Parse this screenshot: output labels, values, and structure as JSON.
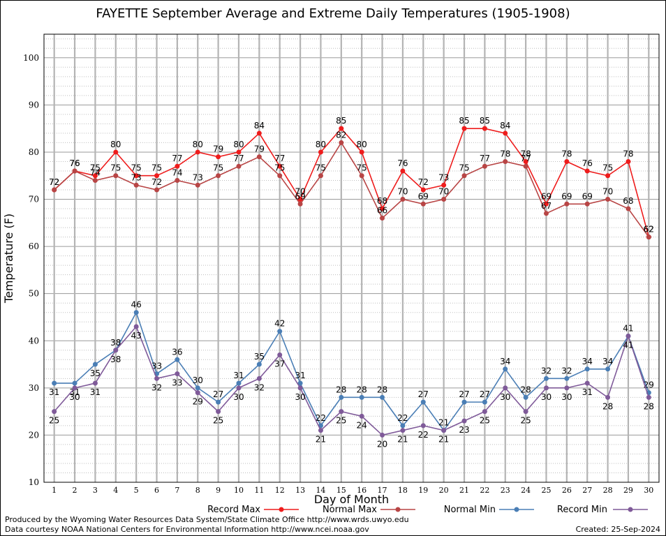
{
  "chart_data": {
    "type": "line",
    "title": "FAYETTE September Average and Extreme Daily Temperatures (1905-1908)",
    "xlabel": "Day of Month",
    "ylabel": "Temperature (F)",
    "x": [
      1,
      2,
      3,
      4,
      5,
      6,
      7,
      8,
      9,
      10,
      11,
      12,
      13,
      14,
      15,
      16,
      17,
      18,
      19,
      20,
      21,
      22,
      23,
      24,
      25,
      26,
      27,
      28,
      29,
      30
    ],
    "ylim": [
      10,
      105
    ],
    "yticks": [
      10,
      20,
      30,
      40,
      50,
      60,
      70,
      80,
      90,
      100
    ],
    "grid": true,
    "legend_position": "bottom",
    "series": [
      {
        "name": "Record Max",
        "color": "#ee1c1c",
        "values": [
          72,
          76,
          75,
          80,
          75,
          75,
          77,
          80,
          79,
          80,
          84,
          77,
          70,
          80,
          85,
          80,
          68,
          76,
          72,
          73,
          85,
          85,
          84,
          78,
          69,
          78,
          76,
          75,
          78,
          62
        ]
      },
      {
        "name": "Normal Max",
        "color": "#b84545",
        "values": [
          72,
          76,
          74,
          75,
          73,
          72,
          74,
          73,
          75,
          77,
          79,
          75,
          69,
          75,
          82,
          75,
          66,
          70,
          69,
          70,
          75,
          77,
          78,
          77,
          67,
          69,
          69,
          70,
          68,
          62
        ]
      },
      {
        "name": "Normal Min",
        "color": "#4a7eb5",
        "values": [
          31,
          31,
          35,
          38,
          46,
          33,
          36,
          30,
          27,
          31,
          35,
          42,
          31,
          22,
          28,
          28,
          28,
          22,
          27,
          21,
          27,
          27,
          34,
          28,
          32,
          32,
          34,
          34,
          41,
          29
        ]
      },
      {
        "name": "Record Min",
        "color": "#7f5a99",
        "values": [
          25,
          30,
          31,
          38,
          43,
          32,
          33,
          29,
          25,
          30,
          32,
          37,
          30,
          21,
          25,
          24,
          20,
          21,
          22,
          21,
          23,
          25,
          30,
          25,
          30,
          30,
          31,
          28,
          41,
          28
        ]
      }
    ]
  },
  "footer": {
    "credit_line1": "Produced by the Wyoming Water Resources Data System/State Climate Office http://www.wrds.uwyo.edu",
    "credit_line2": "Data courtesy NOAA National Centers for Environmental Information http://www.ncei.noaa.gov",
    "created": "Created:  25-Sep-2024"
  }
}
